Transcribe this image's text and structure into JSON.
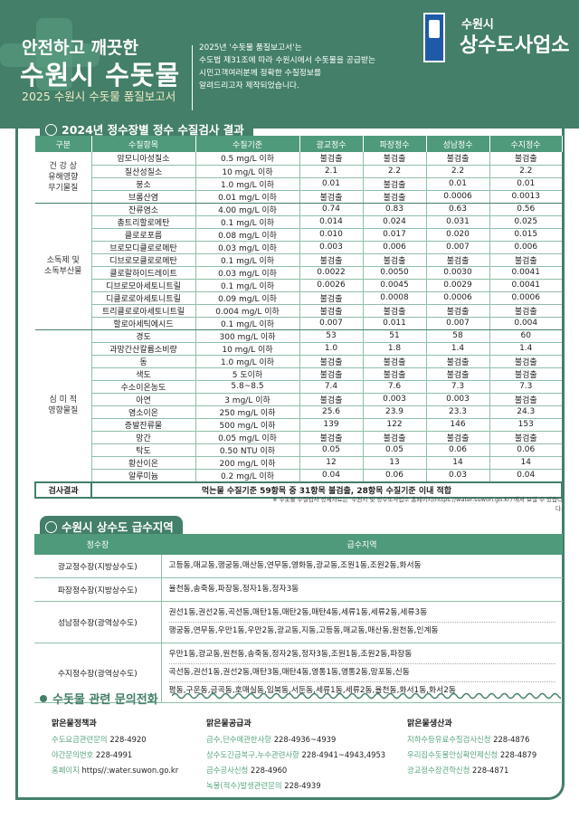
{
  "header": {
    "line1": "안전하고 깨끗한",
    "line2": "수원시 수돗물",
    "line3": "2025 수원시 수돗물 품질보고서",
    "intro": [
      "2025년 '수돗물 품질보고서'는",
      "수도법 제31조에 따라 수원시에서 수돗물을 공급받는",
      "시민고객여러분께 정확한 수질정보를",
      "알려드리고자 제작되었습니다."
    ],
    "logo_small": "수원시",
    "logo_big": "상수도사업소"
  },
  "quality": {
    "title": "2024년 정수장별 정수 수질검사 결과",
    "columns": [
      "구분",
      "수질항목",
      "수질기준",
      "광교정수",
      "파장정수",
      "성남정수",
      "수지정수"
    ],
    "groups": [
      {
        "name": "건 강 상\n유해영향\n무기물질",
        "rows": [
          [
            "암모니아성질소",
            "0.5 mg/L 이하",
            "불검출",
            "불검출",
            "불검출",
            "불검출"
          ],
          [
            "질산성질소",
            "10 mg/L 이하",
            "2.1",
            "2.2",
            "2.2",
            "2.2"
          ],
          [
            "붕소",
            "1.0 mg/L 이하",
            "0.01",
            "불검출",
            "0.01",
            "0.01"
          ],
          [
            "브롬산염",
            "0.01 mg/L 이하",
            "불검출",
            "불검출",
            "0.0006",
            "0.0013"
          ]
        ]
      },
      {
        "name": "소독제 및\n소독부산물",
        "rows": [
          [
            "잔류염소",
            "4.00 mg/L 이하",
            "0.74",
            "0.83",
            "0.63",
            "0.56"
          ],
          [
            "총트리할로메탄",
            "0.1 mg/L 이하",
            "0.014",
            "0.024",
            "0.031",
            "0.025"
          ],
          [
            "클로로포름",
            "0.08 mg/L 이하",
            "0.010",
            "0.017",
            "0.020",
            "0.015"
          ],
          [
            "브로모디클로로메탄",
            "0.03 mg/L 이하",
            "0.003",
            "0.006",
            "0.007",
            "0.006"
          ],
          [
            "디브로모클로로메탄",
            "0.1 mg/L 이하",
            "불검출",
            "불검출",
            "불검출",
            "불검출"
          ],
          [
            "클로랄하이드레이트",
            "0.03 mg/L 이하",
            "0.0022",
            "0.0050",
            "0.0030",
            "0.0041"
          ],
          [
            "디브로모아세토니트릴",
            "0.1 mg/L 이하",
            "0.0026",
            "0.0045",
            "0.0029",
            "0.0041"
          ],
          [
            "디클로로아세토니트릴",
            "0.09 mg/L 이하",
            "불검출",
            "0.0008",
            "0.0006",
            "0.0006"
          ],
          [
            "트리클로로아세토니트릴",
            "0.004 mg/L 이하",
            "불검출",
            "불검출",
            "불검출",
            "불검출"
          ],
          [
            "할로아세틱에시드",
            "0.1 mg/L 이하",
            "0.007",
            "0.011",
            "0.007",
            "0.004"
          ]
        ]
      },
      {
        "name": "심 미 적\n영향물질",
        "rows": [
          [
            "경도",
            "300 mg/L 이하",
            "53",
            "51",
            "58",
            "60"
          ],
          [
            "과망간산칼륨소비량",
            "10 mg/L 이하",
            "1.0",
            "1.8",
            "1.4",
            "1.4"
          ],
          [
            "동",
            "1.0 mg/L 이하",
            "불검출",
            "불검출",
            "불검출",
            "불검출"
          ],
          [
            "색도",
            "5 도이하",
            "불검출",
            "불검출",
            "불검출",
            "불검출"
          ],
          [
            "수소이온농도",
            "5.8~8.5",
            "7.4",
            "7.6",
            "7.3",
            "7.3"
          ],
          [
            "아연",
            "3 mg/L 이하",
            "불검출",
            "0.003",
            "0.003",
            "불검출"
          ],
          [
            "염소이온",
            "250 mg/L 이하",
            "25.6",
            "23.9",
            "23.3",
            "24.3"
          ],
          [
            "증발잔류물",
            "500 mg/L 이하",
            "139",
            "122",
            "146",
            "153"
          ],
          [
            "망간",
            "0.05 mg/L 이하",
            "불검출",
            "불검출",
            "불검출",
            "불검출"
          ],
          [
            "탁도",
            "0.50 NTU 이하",
            "0.05",
            "0.05",
            "0.06",
            "0.06"
          ],
          [
            "황산이온",
            "200 mg/L 이하",
            "12",
            "13",
            "14",
            "14"
          ],
          [
            "알루미늄",
            "0.2 mg/L 이하",
            "0.04",
            "0.06",
            "0.03",
            "0.04"
          ]
        ]
      }
    ],
    "result_label": "검사결과",
    "result_text": "먹는물 수질기준 59항목 중 31항목 불검출, 28항목 수질기준 이내 적합",
    "note": "※ 수돗물 수질검사 상세자료는 '수원시 및 상수도사업소 홈페이지(https://water.suwon.go.kr)'에서 보실 수 있습니다."
  },
  "supply": {
    "title": "수원시 상수도 급수지역",
    "columns": [
      "정수장",
      "급수지역"
    ],
    "rows": [
      {
        "plant": "광교정수장(지방상수도)",
        "areas": [
          "고등동,매교동,행궁동,매산동,연무동,영화동,광교동,조원1동,조원2동,화서동"
        ]
      },
      {
        "plant": "파장정수장(지방상수도)",
        "areas": [
          "율천동,송죽동,파장동,정자1동,정자3동"
        ]
      },
      {
        "plant": "성남정수장(광역상수도)",
        "areas": [
          "권선1동,권선2동,곡선동,매탄1동,매탄2동,매탄4동,세류1동,세류2동,세류3동",
          "행궁동,연무동,우만1동,우만2동,광교동,지동,고등동,매교동,매산동,원천동,인계동"
        ]
      },
      {
        "plant": "수지정수장(광역상수도)",
        "areas": [
          "우만1동,광교동,원천동,송죽동,정자2동,정자3동,조원1동,조원2동,파장동",
          "곡선동,권선1동,권선2동,매탄3동,매탄4동,영통1동,영통2동,망포동,신동",
          "평동,구운동,금곡동,호매실동,입북동,서둔동,세류1동,세류2동,율천동,화서1동,화서2동"
        ]
      }
    ]
  },
  "contacts": {
    "title": "수돗물 관련 문의전화",
    "columns": [
      {
        "dept": "맑은물정책과",
        "items": [
          [
            "수도요금관련문의",
            "228-4920"
          ],
          [
            "야간문의번호",
            "228-4991"
          ],
          [
            "홈페이지",
            "https//:water.suwon.go.kr"
          ]
        ]
      },
      {
        "dept": "맑은물공급과",
        "items": [
          [
            "급수,단수에관한사항",
            "228-4936~4939"
          ],
          [
            "상수도긴급복구,누수관련사항",
            "228-4941~4943,4953"
          ],
          [
            "급수공사신청",
            "228-4960"
          ],
          [
            "녹물(적수)발생관련문의",
            "228-4939"
          ]
        ]
      },
      {
        "dept": "맑은물생산과",
        "items": [
          [
            "지하수등유료수질검사신청",
            "228-4876"
          ],
          [
            "우리집수돗물안심확인제신청",
            "228-4879"
          ],
          [
            "광교정수장견학신청",
            "228-4871"
          ]
        ]
      }
    ]
  },
  "colors": {
    "primary": "#437f69",
    "table_header": "#4f9a7b",
    "accent_text": "#5aa57f"
  }
}
